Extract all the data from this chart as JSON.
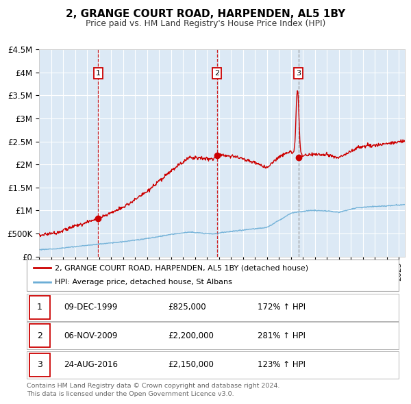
{
  "title": "2, GRANGE COURT ROAD, HARPENDEN, AL5 1BY",
  "subtitle": "Price paid vs. HM Land Registry's House Price Index (HPI)",
  "bg_color": "#dce9f5",
  "grid_color": "#ffffff",
  "hpi_color": "#6baed6",
  "price_color": "#cc0000",
  "ylim": [
    0,
    4500000
  ],
  "xlim_start": 1995.0,
  "xlim_end": 2025.5,
  "ytick_labels": [
    "£0",
    "£500K",
    "£1M",
    "£1.5M",
    "£2M",
    "£2.5M",
    "£3M",
    "£3.5M",
    "£4M",
    "£4.5M"
  ],
  "ytick_values": [
    0,
    500000,
    1000000,
    1500000,
    2000000,
    2500000,
    3000000,
    3500000,
    4000000,
    4500000
  ],
  "sales": [
    {
      "num": 1,
      "date": "09-DEC-1999",
      "year": 1999.93,
      "price": 825000,
      "pct": "172% ↑ HPI",
      "vline_color": "#cc0000",
      "vline_style": "--"
    },
    {
      "num": 2,
      "date": "06-NOV-2009",
      "year": 2009.84,
      "price": 2200000,
      "pct": "281% ↑ HPI",
      "vline_color": "#cc0000",
      "vline_style": "--"
    },
    {
      "num": 3,
      "date": "24-AUG-2016",
      "year": 2016.64,
      "price": 2150000,
      "pct": "123% ↑ HPI",
      "vline_color": "#888888",
      "vline_style": "--"
    }
  ],
  "legend_label_price": "2, GRANGE COURT ROAD, HARPENDEN, AL5 1BY (detached house)",
  "legend_label_hpi": "HPI: Average price, detached house, St Albans",
  "table_rows": [
    {
      "num": "1",
      "date": "09-DEC-1999",
      "price": "£825,000",
      "pct": "172% ↑ HPI"
    },
    {
      "num": "2",
      "date": "06-NOV-2009",
      "price": "£2,200,000",
      "pct": "281% ↑ HPI"
    },
    {
      "num": "3",
      "date": "24-AUG-2016",
      "price": "£2,150,000",
      "pct": "123% ↑ HPI"
    }
  ],
  "footer1": "Contains HM Land Registry data © Crown copyright and database right 2024.",
  "footer2": "This data is licensed under the Open Government Licence v3.0."
}
